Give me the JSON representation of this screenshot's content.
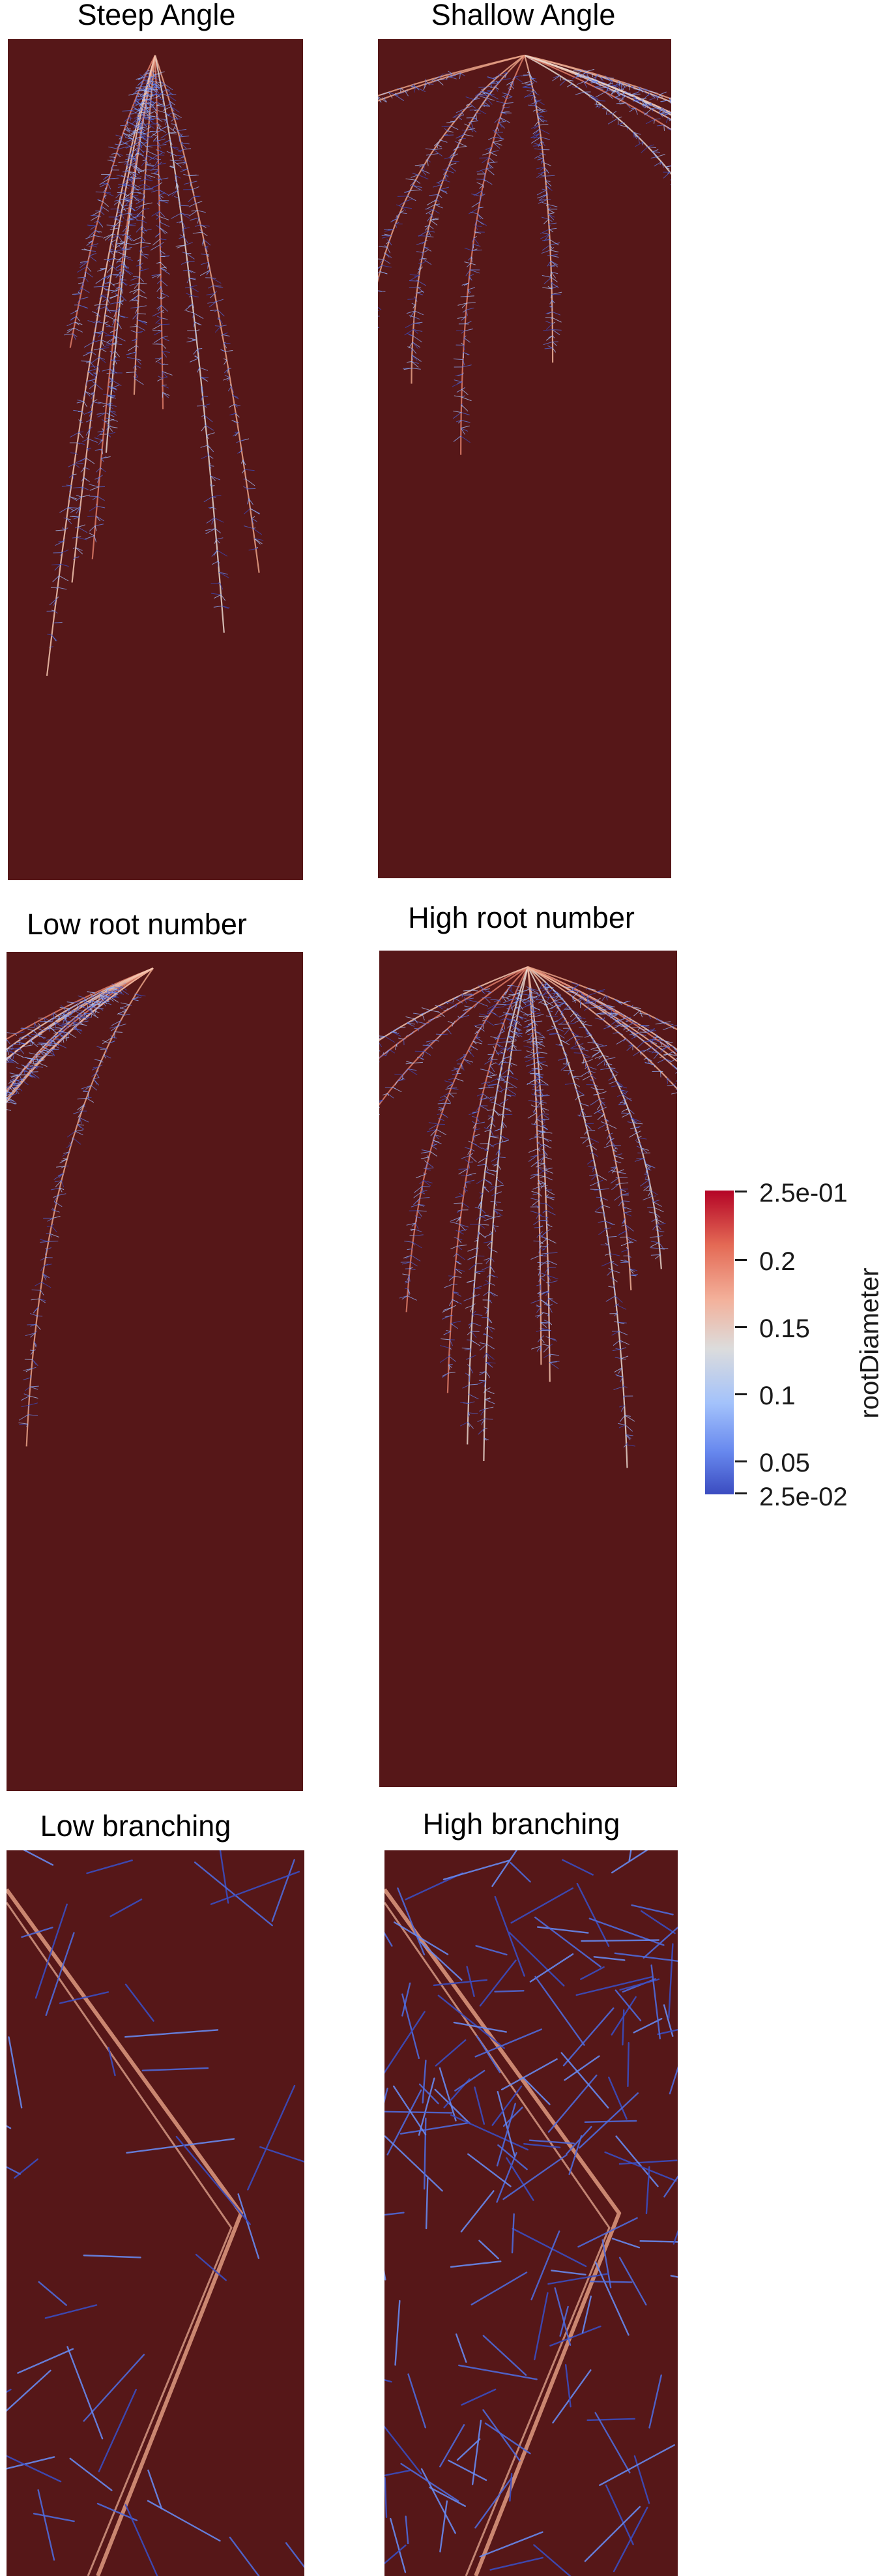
{
  "panels": [
    {
      "title": "Steep Angle"
    },
    {
      "title": "Shallow Angle"
    },
    {
      "title": "Low root number"
    },
    {
      "title": "High root number"
    },
    {
      "title": "Low branching"
    },
    {
      "title": "High branching"
    }
  ],
  "colorbar": {
    "title": "rootDiameter",
    "labels": [
      "2.5e-01",
      "0.2",
      "0.15",
      "0.1",
      "0.05",
      "2.5e-02"
    ],
    "colors": {
      "high": "#b40426",
      "mid": "#dcdcdc",
      "low": "#3b4cc0",
      "background": "#561718"
    }
  }
}
